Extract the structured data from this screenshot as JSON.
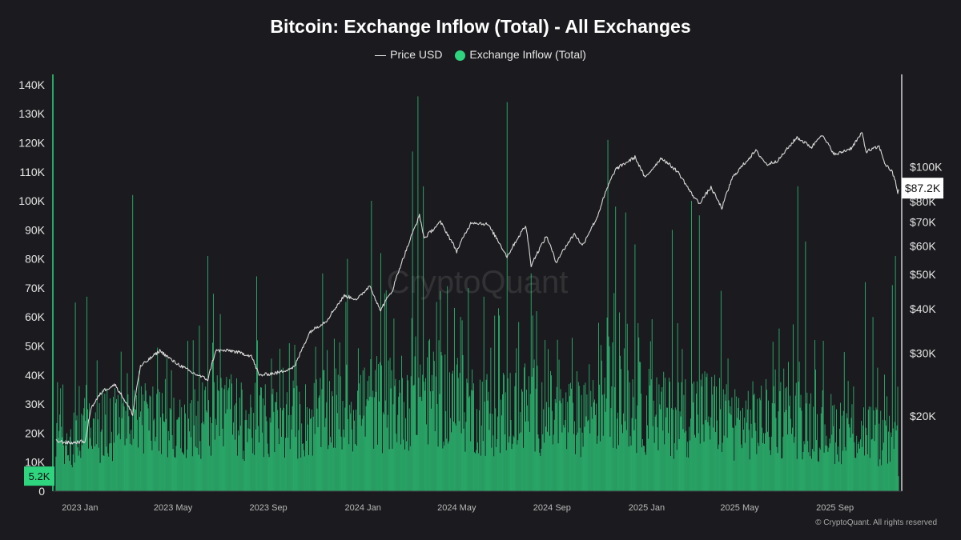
{
  "chart_data": {
    "type": "bar",
    "title": "Bitcoin: Exchange Inflow (Total) - All Exchanges",
    "legend": {
      "price_label": "Price USD",
      "inflow_label": "Exchange Inflow (Total)"
    },
    "x_range": [
      "2022-11-28",
      "2025-11-22"
    ],
    "x_ticks": [
      {
        "date": "2023-01-01",
        "label": "2023 Jan"
      },
      {
        "date": "2023-05-01",
        "label": "2023 May"
      },
      {
        "date": "2023-09-01",
        "label": "2023 Sep"
      },
      {
        "date": "2024-01-01",
        "label": "2024 Jan"
      },
      {
        "date": "2024-05-01",
        "label": "2024 May"
      },
      {
        "date": "2024-09-01",
        "label": "2024 Sep"
      },
      {
        "date": "2025-01-01",
        "label": "2025 Jan"
      },
      {
        "date": "2025-05-01",
        "label": "2025 May"
      },
      {
        "date": "2025-09-01",
        "label": "2025 Sep"
      }
    ],
    "y_left": {
      "range": [
        0,
        143000
      ],
      "ticks": [
        {
          "value": 0,
          "label": "0"
        },
        {
          "value": 10000,
          "label": "10K"
        },
        {
          "value": 20000,
          "label": "20K"
        },
        {
          "value": 30000,
          "label": "30K"
        },
        {
          "value": 40000,
          "label": "40K"
        },
        {
          "value": 50000,
          "label": "50K"
        },
        {
          "value": 60000,
          "label": "60K"
        },
        {
          "value": 70000,
          "label": "70K"
        },
        {
          "value": 80000,
          "label": "80K"
        },
        {
          "value": 90000,
          "label": "90K"
        },
        {
          "value": 100000,
          "label": "100K"
        },
        {
          "value": 110000,
          "label": "110K"
        },
        {
          "value": 120000,
          "label": "120K"
        },
        {
          "value": 130000,
          "label": "130K"
        },
        {
          "value": 140000,
          "label": "140K"
        }
      ],
      "last_value_label": "5.2K"
    },
    "y_right": {
      "scale": "log",
      "range": [
        12300,
        180000
      ],
      "ticks": [
        {
          "value": 20000,
          "label": "$20K"
        },
        {
          "value": 30000,
          "label": "$30K"
        },
        {
          "value": 40000,
          "label": "$40K"
        },
        {
          "value": 50000,
          "label": "$50K"
        },
        {
          "value": 60000,
          "label": "$60K"
        },
        {
          "value": 70000,
          "label": "$70K"
        },
        {
          "value": 80000,
          "label": "$80K"
        },
        {
          "value": 100000,
          "label": "$100K"
        }
      ],
      "last_value_label": "$87.2K"
    },
    "series": [
      {
        "name": "Price USD",
        "type": "line",
        "color": "#d8d8d8",
        "points": [
          [
            "2022-12-01",
            17000
          ],
          [
            "2022-12-20",
            16800
          ],
          [
            "2023-01-08",
            17000
          ],
          [
            "2023-01-15",
            21000
          ],
          [
            "2023-01-30",
            23500
          ],
          [
            "2023-02-15",
            24500
          ],
          [
            "2023-03-10",
            20200
          ],
          [
            "2023-03-20",
            27500
          ],
          [
            "2023-04-14",
            30500
          ],
          [
            "2023-05-01",
            28500
          ],
          [
            "2023-05-25",
            26500
          ],
          [
            "2023-06-15",
            25300
          ],
          [
            "2023-06-25",
            30500
          ],
          [
            "2023-07-15",
            30500
          ],
          [
            "2023-08-10",
            29500
          ],
          [
            "2023-08-20",
            26000
          ],
          [
            "2023-09-15",
            26500
          ],
          [
            "2023-10-05",
            27500
          ],
          [
            "2023-10-25",
            34500
          ],
          [
            "2023-11-15",
            37000
          ],
          [
            "2023-12-08",
            43500
          ],
          [
            "2023-12-25",
            42500
          ],
          [
            "2024-01-10",
            46500
          ],
          [
            "2024-01-23",
            39500
          ],
          [
            "2024-02-08",
            45000
          ],
          [
            "2024-02-28",
            60000
          ],
          [
            "2024-03-14",
            73000
          ],
          [
            "2024-03-20",
            63000
          ],
          [
            "2024-04-10",
            70000
          ],
          [
            "2024-05-01",
            58000
          ],
          [
            "2024-05-20",
            70000
          ],
          [
            "2024-06-10",
            69000
          ],
          [
            "2024-07-05",
            56000
          ],
          [
            "2024-07-29",
            68500
          ],
          [
            "2024-08-05",
            53000
          ],
          [
            "2024-08-25",
            64000
          ],
          [
            "2024-09-06",
            54000
          ],
          [
            "2024-09-30",
            65000
          ],
          [
            "2024-10-10",
            60000
          ],
          [
            "2024-10-29",
            72000
          ],
          [
            "2024-11-12",
            88000
          ],
          [
            "2024-11-22",
            98500
          ],
          [
            "2024-12-17",
            106500
          ],
          [
            "2024-12-30",
            93000
          ],
          [
            "2025-01-20",
            106000
          ],
          [
            "2025-02-10",
            97000
          ],
          [
            "2025-02-28",
            84000
          ],
          [
            "2025-03-10",
            79000
          ],
          [
            "2025-03-25",
            87500
          ],
          [
            "2025-04-08",
            76500
          ],
          [
            "2025-04-22",
            93500
          ],
          [
            "2025-05-22",
            111000
          ],
          [
            "2025-06-05",
            101500
          ],
          [
            "2025-06-20",
            104500
          ],
          [
            "2025-07-14",
            121000
          ],
          [
            "2025-08-02",
            113500
          ],
          [
            "2025-08-14",
            123500
          ],
          [
            "2025-09-01",
            108000
          ],
          [
            "2025-09-22",
            113000
          ],
          [
            "2025-10-06",
            124500
          ],
          [
            "2025-10-11",
            110500
          ],
          [
            "2025-10-28",
            114000
          ],
          [
            "2025-11-05",
            101500
          ],
          [
            "2025-11-13",
            97500
          ],
          [
            "2025-11-18",
            91000
          ],
          [
            "2025-11-21",
            84500
          ],
          [
            "2025-11-22",
            87200
          ]
        ]
      },
      {
        "name": "Exchange Inflow (Total)",
        "type": "bar",
        "color": "#2fd47f",
        "baseline": [
          [
            "2022-12-01",
            21000
          ],
          [
            "2023-01-15",
            26000
          ],
          [
            "2023-03-15",
            31000
          ],
          [
            "2023-05-01",
            25000
          ],
          [
            "2023-06-25",
            34000
          ],
          [
            "2023-08-01",
            29000
          ],
          [
            "2023-10-01",
            28000
          ],
          [
            "2023-11-20",
            33000
          ],
          [
            "2024-01-10",
            37000
          ],
          [
            "2024-02-15",
            36000
          ],
          [
            "2024-03-15",
            43000
          ],
          [
            "2024-04-25",
            38000
          ],
          [
            "2024-06-15",
            32000
          ],
          [
            "2024-08-05",
            36000
          ],
          [
            "2024-09-20",
            29000
          ],
          [
            "2024-11-15",
            43000
          ],
          [
            "2024-12-20",
            35000
          ],
          [
            "2025-02-01",
            31000
          ],
          [
            "2025-03-15",
            34000
          ],
          [
            "2025-05-01",
            29000
          ],
          [
            "2025-07-15",
            31000
          ],
          [
            "2025-09-01",
            26000
          ],
          [
            "2025-10-15",
            25000
          ],
          [
            "2025-11-22",
            18000
          ]
        ],
        "spikes": [
          [
            "2022-12-26",
            65000
          ],
          [
            "2023-01-10",
            67000
          ],
          [
            "2023-03-10",
            102000
          ],
          [
            "2023-06-15",
            81000
          ],
          [
            "2023-06-22",
            68000
          ],
          [
            "2023-08-17",
            74000
          ],
          [
            "2023-11-10",
            75000
          ],
          [
            "2023-12-12",
            80000
          ],
          [
            "2024-01-12",
            100000
          ],
          [
            "2024-01-24",
            82000
          ],
          [
            "2024-03-05",
            117000
          ],
          [
            "2024-03-12",
            136000
          ],
          [
            "2024-03-19",
            105000
          ],
          [
            "2024-05-16",
            70000
          ],
          [
            "2024-06-05",
            67000
          ],
          [
            "2024-06-24",
            63000
          ],
          [
            "2024-07-05",
            134000
          ],
          [
            "2024-08-05",
            75000
          ],
          [
            "2024-08-12",
            62000
          ],
          [
            "2024-11-12",
            121000
          ],
          [
            "2024-11-22",
            98000
          ],
          [
            "2024-12-05",
            96000
          ],
          [
            "2024-12-17",
            85000
          ],
          [
            "2025-02-03",
            90000
          ],
          [
            "2025-02-28",
            100000
          ],
          [
            "2025-03-10",
            95000
          ],
          [
            "2025-04-07",
            69000
          ],
          [
            "2025-07-15",
            105000
          ],
          [
            "2025-07-25",
            86000
          ],
          [
            "2025-10-10",
            72000
          ],
          [
            "2025-10-20",
            60000
          ],
          [
            "2025-11-14",
            71000
          ],
          [
            "2025-11-18",
            81000
          ],
          [
            "2025-11-21",
            36000
          ],
          [
            "2025-11-22",
            5200
          ]
        ]
      }
    ],
    "grid": false,
    "watermark": "CryptoQuant",
    "copyright": "© CryptoQuant. All rights reserved"
  }
}
